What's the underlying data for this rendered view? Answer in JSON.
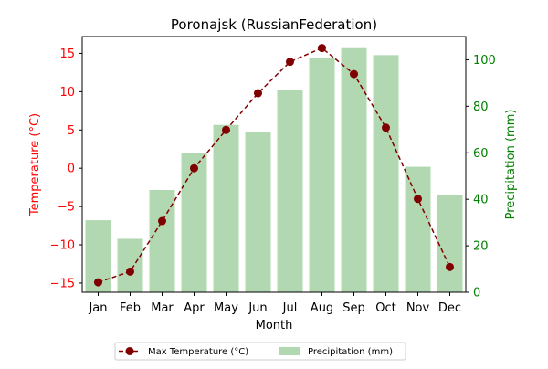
{
  "chart_data": {
    "type": "bar+line",
    "title": "Poronajsk (RussianFederation)",
    "xlabel": "Month",
    "categories": [
      "Jan",
      "Feb",
      "Mar",
      "Apr",
      "May",
      "Jun",
      "Jul",
      "Aug",
      "Sep",
      "Oct",
      "Nov",
      "Dec"
    ],
    "y_left": {
      "label": "Temperature (°C)",
      "range": [
        -16.2,
        17.2
      ],
      "ticks": [
        -15,
        -10,
        -5,
        0,
        5,
        10,
        15
      ],
      "tick_labels": [
        "−15",
        "−10",
        "−5",
        "0",
        "5",
        "10",
        "15"
      ],
      "color": "#ff0000"
    },
    "y_right": {
      "label": "Precipitation (mm)",
      "range": [
        0,
        110
      ],
      "ticks": [
        0,
        20,
        40,
        60,
        80,
        100
      ],
      "tick_labels": [
        "0",
        "20",
        "40",
        "60",
        "80",
        "100"
      ],
      "color": "#008000"
    },
    "series": [
      {
        "name": "Max Temperature (°C)",
        "kind": "line",
        "axis": "left",
        "color": "#800000",
        "values": [
          -14.9,
          -13.5,
          -6.9,
          0.0,
          5.0,
          9.8,
          13.9,
          15.7,
          12.3,
          5.3,
          -4.0,
          -12.9
        ]
      },
      {
        "name": "Precipitation (mm)",
        "kind": "bar",
        "axis": "right",
        "color": "#b2d8b2",
        "values": [
          31,
          23,
          44,
          60,
          72,
          69,
          87,
          101,
          105,
          102,
          54,
          42
        ]
      }
    ],
    "legend": {
      "placement": "bottom-center",
      "columns": 2
    },
    "grid": false
  }
}
